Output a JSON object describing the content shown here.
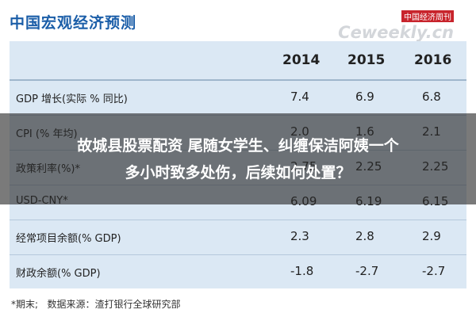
{
  "header": {
    "title": "中国宏观经济预测",
    "watermark": {
      "top": "中国经济周刊",
      "brand": "Ceweekly.cn"
    }
  },
  "table": {
    "columns": [
      "2014",
      "2015",
      "2016"
    ],
    "rows": [
      [
        "GDP 增长(实际 % 同比)",
        "7.4",
        "6.9",
        "6.8"
      ],
      [
        "CPI (% 年均)",
        "2.0",
        "1.6",
        "2.1"
      ],
      [
        "政策利率(%)*",
        "2.75",
        "2.25",
        "2.25"
      ],
      [
        "USD-CNY*",
        "6.09",
        "6.19",
        "6.15"
      ],
      [
        "经常项目余额(% GDP)",
        "2.3",
        "2.8",
        "2.9"
      ],
      [
        "财政余额(% GDP)",
        "-1.8",
        "-2.7",
        "-2.7"
      ]
    ]
  },
  "footnote": "*期末;   数据来源：渣打银行全球研究部",
  "overlay": {
    "lines": [
      "故城县股票配资 尾随女学生、纠缠保洁阿姨一个",
      "多小时致多处伤，后续如何处置？"
    ]
  }
}
